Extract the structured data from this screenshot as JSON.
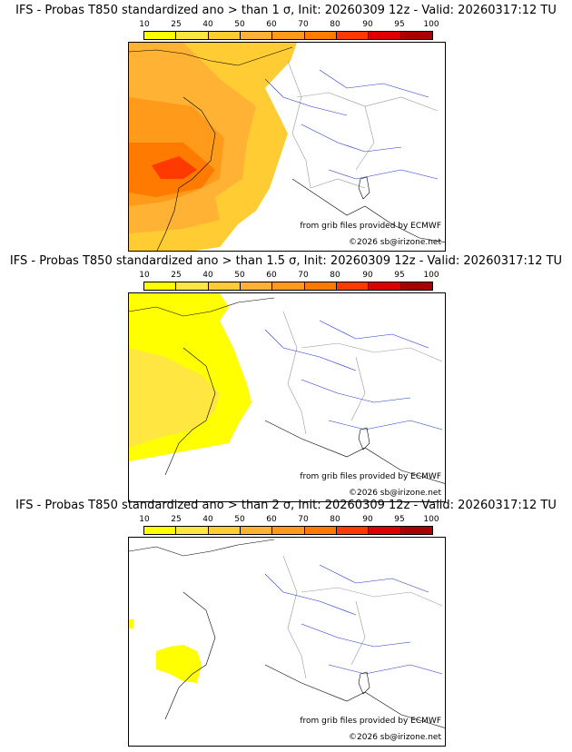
{
  "legend": {
    "levels": [
      "10",
      "25",
      "40",
      "50",
      "60",
      "70",
      "80",
      "90",
      "95",
      "100"
    ],
    "colors": [
      "#ffff00",
      "#ffe640",
      "#ffcc33",
      "#ffb233",
      "#ff9a1a",
      "#ff7a00",
      "#ff3a00",
      "#dd0000",
      "#a80000",
      "#550000"
    ]
  },
  "panels": [
    {
      "title": "IFS - Probas T850  standardized ano > than 1 σ, Init: 20260309 12z - Valid: 20260317:12 TU",
      "threshold_sigma": 1,
      "source": "from grib files provided by ECMWF",
      "copyright": "©2026 sb@irizone.net"
    },
    {
      "title": "IFS - Probas T850  standardized ano > than 1.5 σ, Init: 20260309 12z - Valid: 20260317:12 TU",
      "threshold_sigma": 1.5,
      "source": "from grib files provided by ECMWF",
      "copyright": "©2026 sb@irizone.net"
    },
    {
      "title": "IFS - Probas T850  standardized ano > than 2 σ, Init: 20260309 12z - Valid: 20260317:12 TU",
      "threshold_sigma": 2,
      "source": "from grib files provided by ECMWF",
      "copyright": "©2026 sb@irizone.net"
    }
  ]
}
